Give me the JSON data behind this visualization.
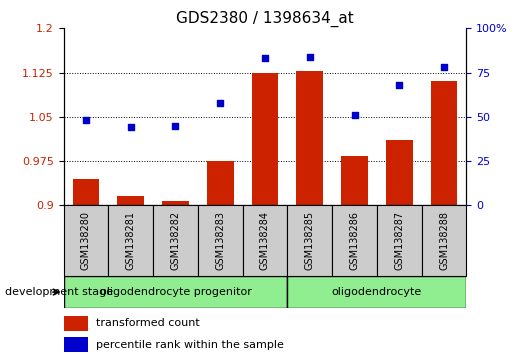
{
  "title": "GDS2380 / 1398634_at",
  "samples": [
    "GSM138280",
    "GSM138281",
    "GSM138282",
    "GSM138283",
    "GSM138284",
    "GSM138285",
    "GSM138286",
    "GSM138287",
    "GSM138288"
  ],
  "bar_values": [
    0.945,
    0.915,
    0.908,
    0.975,
    1.125,
    1.127,
    0.983,
    1.01,
    1.11
  ],
  "scatter_values": [
    48,
    44,
    45,
    58,
    83,
    84,
    51,
    68,
    78
  ],
  "ylim_left": [
    0.9,
    1.2
  ],
  "ylim_right": [
    0,
    100
  ],
  "yticks_left": [
    0.9,
    0.975,
    1.05,
    1.125,
    1.2
  ],
  "ytick_labels_left": [
    "0.9",
    "0.975",
    "1.05",
    "1.125",
    "1.2"
  ],
  "yticks_right": [
    0,
    25,
    50,
    75,
    100
  ],
  "ytick_labels_right": [
    "0",
    "25",
    "50",
    "75",
    "100%"
  ],
  "bar_color": "#cc2200",
  "scatter_color": "#0000cc",
  "group1_label": "oligodendrocyte progenitor",
  "group2_label": "oligodendrocyte",
  "group1_indices": [
    0,
    1,
    2,
    3,
    4
  ],
  "group2_indices": [
    5,
    6,
    7,
    8
  ],
  "legend_bar_label": "transformed count",
  "legend_scatter_label": "percentile rank within the sample",
  "xlabel_label": "development stage",
  "group1_color": "#90ee90",
  "group2_color": "#90ee90",
  "sample_box_color": "#cccccc",
  "dotted_line_color": "#000000",
  "title_fontsize": 11,
  "tick_fontsize": 8,
  "legend_fontsize": 8,
  "sample_fontsize": 7,
  "group_fontsize": 8,
  "bar_width": 0.6
}
